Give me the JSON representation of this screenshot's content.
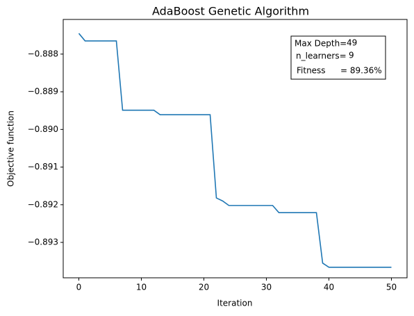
{
  "chart_data": {
    "type": "line",
    "title": "AdaBoost Genetic Algorithm",
    "x_label": "Iteration",
    "y_label": "Objective function",
    "x": [
      0,
      1,
      2,
      3,
      4,
      5,
      6,
      7,
      8,
      9,
      10,
      11,
      12,
      13,
      14,
      15,
      16,
      17,
      18,
      19,
      20,
      21,
      22,
      23,
      24,
      25,
      26,
      27,
      28,
      29,
      30,
      31,
      32,
      33,
      34,
      35,
      36,
      37,
      38,
      39,
      40,
      41,
      42,
      43,
      44,
      45,
      46,
      47,
      48,
      49,
      50
    ],
    "series": [
      {
        "name": "Objective",
        "color": "#1f77b4",
        "values": [
          -0.88745,
          -0.88765,
          -0.88765,
          -0.88765,
          -0.88765,
          -0.88765,
          -0.88765,
          -0.88949,
          -0.88949,
          -0.88949,
          -0.88949,
          -0.88949,
          -0.88949,
          -0.88961,
          -0.88961,
          -0.88961,
          -0.88961,
          -0.88961,
          -0.88961,
          -0.88961,
          -0.88961,
          -0.88961,
          -0.89182,
          -0.8919,
          -0.89202,
          -0.89202,
          -0.89202,
          -0.89202,
          -0.89202,
          -0.89202,
          -0.89202,
          -0.89202,
          -0.89221,
          -0.89221,
          -0.89221,
          -0.89221,
          -0.89221,
          -0.89221,
          -0.89221,
          -0.89355,
          -0.89366,
          -0.89366,
          -0.89366,
          -0.89366,
          -0.89366,
          -0.89366,
          -0.89366,
          -0.89366,
          -0.89366,
          -0.89366,
          -0.89366
        ]
      }
    ],
    "xlim": [
      -2.5,
      52.5
    ],
    "xticks": [
      0,
      10,
      20,
      30,
      40,
      50
    ],
    "ylim": [
      -0.89394,
      -0.88708
    ],
    "yticks": [
      {
        "value": -0.893,
        "label": "−0.893"
      },
      {
        "value": -0.892,
        "label": "−0.892"
      },
      {
        "value": -0.891,
        "label": "−0.891"
      },
      {
        "value": -0.89,
        "label": "−0.890"
      },
      {
        "value": -0.889,
        "label": "−0.889"
      },
      {
        "value": -0.888,
        "label": "−0.888"
      }
    ],
    "annotations": [
      {
        "label": "Max Depth=",
        "value": "49"
      },
      {
        "label": "n_learners=",
        "value": "9"
      },
      {
        "label": "Fitness",
        "value": "= 89.36%"
      }
    ]
  }
}
